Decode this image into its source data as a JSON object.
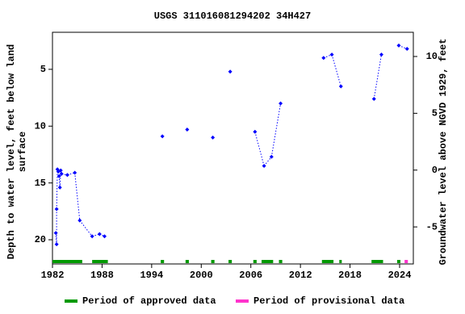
{
  "chart_data": {
    "type": "scatter",
    "title": "USGS 311016081294202 34H427",
    "ylabel": [
      "Depth to water level, feet below land",
      "surface"
    ],
    "y2label": "Groundwater level above NGVD 1929, feet",
    "xlim": [
      1982,
      2025.66
    ],
    "xticks": [
      1982,
      1988,
      1994,
      2000,
      2006,
      2012,
      2018,
      2024
    ],
    "ylim": [
      1.74,
      22.13
    ],
    "y_inverted": true,
    "yticks": [
      5,
      10,
      15,
      20
    ],
    "y2lim": [
      -8.26,
      12.13
    ],
    "y2ticks": [
      10,
      5,
      0,
      -5
    ],
    "series": [
      {
        "name": "Depth to water level",
        "color": "#0000ff",
        "x": [
          1982.4,
          1982.5,
          1982.5,
          1982.6,
          1982.7,
          1982.8,
          1982.9,
          1983.0,
          1983.1,
          1983.8,
          1984.7,
          1985.3,
          1986.8,
          1987.7,
          1988.3,
          1995.3,
          1998.3,
          2001.4,
          2003.5,
          2006.5,
          2007.6,
          2008.5,
          2009.6,
          2014.8,
          2015.8,
          2016.9,
          2020.9,
          2021.8,
          2023.9,
          2024.9
        ],
        "values": [
          19.4,
          20.4,
          17.3,
          13.8,
          14.0,
          14.4,
          15.4,
          13.9,
          14.2,
          14.3,
          14.1,
          18.3,
          19.7,
          19.5,
          19.7,
          10.9,
          10.3,
          11.0,
          5.2,
          10.5,
          13.5,
          12.7,
          8.0,
          4.0,
          3.7,
          6.5,
          7.6,
          3.7,
          2.9,
          3.2
        ]
      }
    ],
    "periods": [
      {
        "name": "Period of approved data",
        "color": "#009900",
        "ranges": [
          [
            1982,
            1985.6
          ],
          [
            1986.8,
            1988.7
          ],
          [
            1995.1,
            1995.5
          ],
          [
            1998.1,
            1998.5
          ],
          [
            2001.2,
            2001.6
          ],
          [
            2003.3,
            2003.7
          ],
          [
            2006.3,
            2006.7
          ],
          [
            2007.3,
            2008.7
          ],
          [
            2009.4,
            2009.8
          ],
          [
            2014.6,
            2016.0
          ],
          [
            2016.7,
            2017.0
          ],
          [
            2020.6,
            2022.0
          ],
          [
            2023.7,
            2024.1
          ]
        ]
      },
      {
        "name": "Period of provisional data",
        "color": "#ff33cc",
        "ranges": [
          [
            2024.6,
            2025.0
          ]
        ]
      }
    ]
  }
}
